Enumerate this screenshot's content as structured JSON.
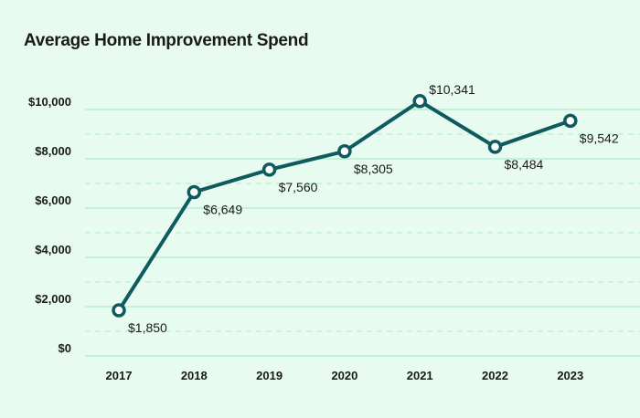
{
  "chart_data": {
    "type": "line",
    "title": "Average Home Improvement Spend",
    "xlabel": "",
    "ylabel": "",
    "categories": [
      "2017",
      "2018",
      "2019",
      "2020",
      "2021",
      "2022",
      "2023"
    ],
    "series": [
      {
        "name": "Average Home Improvement Spend",
        "values": [
          1850,
          6649,
          7560,
          8305,
          10341,
          8484,
          9542
        ],
        "color": "#0f5a5e"
      }
    ],
    "data_labels": [
      "$1,850",
      "$6,649",
      "$7,560",
      "$8,305",
      "$10,341",
      "$8,484",
      "$9,542"
    ],
    "ylim": [
      0,
      10000
    ],
    "yticks": [
      0,
      2000,
      4000,
      6000,
      8000,
      10000
    ],
    "ytick_labels": [
      "$0",
      "$2,000",
      "$4,000",
      "$6,000",
      "$8,000",
      "$10,000"
    ],
    "minor_grid": [
      1000,
      3000,
      5000,
      7000,
      9000
    ],
    "grid": true,
    "legend": "none",
    "colors": {
      "background": "#e7fbf0",
      "grid": "#b5efd3",
      "line": "#0f5a5e"
    }
  }
}
